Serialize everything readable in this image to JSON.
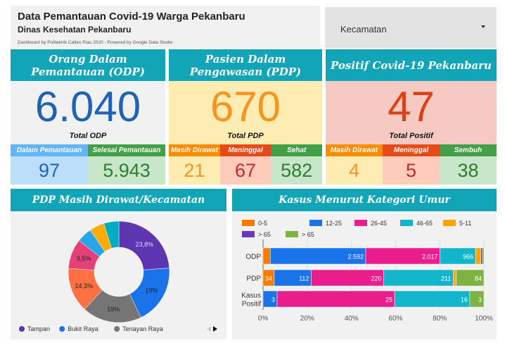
{
  "header": {
    "title": "Data Pemantauan Covid-19 Warga Pekanbaru",
    "subtitle": "Dinas Kesehatan Pekanbaru",
    "credit": "Dashboard by Politeknik Caltex Riau 2020 - Powered by Google Data Studio"
  },
  "filter": {
    "label": "Kecamatan"
  },
  "cards": [
    {
      "title": "Orang Dalam Pemantauan (ODP)",
      "value": "6.040",
      "total_label": "Total ODP",
      "bg": "#f1f1f1",
      "color": "#1e63b8",
      "subs": [
        {
          "label": "Dalam Pemantauan",
          "value": "97",
          "head": "#64b5f6",
          "bg": "#bbdefb",
          "color": "#1e63b8"
        },
        {
          "label": "Selesai Pemantauan",
          "value": "5.943",
          "head": "#43a047",
          "bg": "#c8e6c9",
          "color": "#2e7d32"
        }
      ]
    },
    {
      "title": "Pasien Dalam Pengawasan (PDP)",
      "value": "670",
      "total_label": "Total PDP",
      "bg": "#ffecb3",
      "color": "#f7941d",
      "subs": [
        {
          "label": "Masih Dirawat",
          "value": "21",
          "head": "#fb8c00",
          "bg": "#ffecb3",
          "color": "#f7941d"
        },
        {
          "label": "Meninggal",
          "value": "67",
          "head": "#e64a19",
          "bg": "#ffccbc",
          "color": "#c62828"
        },
        {
          "label": "Sehat",
          "value": "582",
          "head": "#43a047",
          "bg": "#c8e6c9",
          "color": "#2e7d32"
        }
      ]
    },
    {
      "title": "Positif Covid-19 Pekanbaru",
      "value": "47",
      "total_label": "Total Positif",
      "bg": "#f6c9c3",
      "color": "#d84315",
      "subs": [
        {
          "label": "Masih Dirawat",
          "value": "4",
          "head": "#fb8c00",
          "bg": "#ffecb3",
          "color": "#f7941d"
        },
        {
          "label": "Meninggal",
          "value": "5",
          "head": "#e64a19",
          "bg": "#ffccbc",
          "color": "#c62828"
        },
        {
          "label": "Sembuh",
          "value": "38",
          "head": "#43a047",
          "bg": "#c8e6c9",
          "color": "#2e7d32"
        }
      ]
    }
  ],
  "chart_data": [
    {
      "type": "pie",
      "title": "PDP Masih Dirawat/Kecamatan",
      "donut": true,
      "slices": [
        {
          "name": "Tampan",
          "value": 23.8,
          "label": "23,8%",
          "color": "#5e35b1"
        },
        {
          "name": "Bukit Raya",
          "value": 19,
          "label": "19%",
          "color": "#1a73e8"
        },
        {
          "name": "Tenayan Raya",
          "value": 19,
          "label": "19%",
          "color": "#757575"
        },
        {
          "value": 14.3,
          "label": "14,3%",
          "color": "#ff7043"
        },
        {
          "value": 9.5,
          "label": "9,5%",
          "color": "#e6407a"
        },
        {
          "value": 4.8,
          "label": "",
          "color": "#26a6e8"
        },
        {
          "value": 4.8,
          "label": "",
          "color": "#ffab00"
        },
        {
          "value": 4.8,
          "label": "",
          "color": "#00acc1"
        }
      ],
      "legend": [
        "Tampan",
        "Bukit Raya",
        "Tenayan Raya"
      ],
      "legend_position": "bottom"
    },
    {
      "type": "bar",
      "stacked": "percent",
      "orientation": "horizontal",
      "title": "Kasus Menurut Kategori Umur",
      "categories": [
        "ODP",
        "PDP",
        "Kasus Positif"
      ],
      "series": [
        {
          "name": "0-5",
          "color": "#f57c00",
          "values": [
            197,
            34,
            0
          ]
        },
        {
          "name": "12-25",
          "color": "#1a73e8",
          "values": [
            2592,
            112,
            3
          ]
        },
        {
          "name": "26-45",
          "color": "#e91e8c",
          "values": [
            2017,
            220,
            25
          ]
        },
        {
          "name": "46-65",
          "color": "#12b5cb",
          "values": [
            966,
            211,
            16
          ]
        },
        {
          "name": "5-11",
          "color": "#ffa400",
          "values": [
            145,
            9,
            0
          ]
        },
        {
          "name": "> 65",
          "color": "#673ab7",
          "values": [
            42,
            0,
            0
          ]
        },
        {
          "name": "> 65",
          "color": "#7cb342",
          "values": [
            40,
            84,
            3
          ]
        }
      ],
      "xticks": [
        "0%",
        "20%",
        "40%",
        "60%",
        "80%",
        "100%"
      ],
      "xlim": [
        0,
        100
      ],
      "grid": true,
      "legend_position": "top"
    }
  ]
}
